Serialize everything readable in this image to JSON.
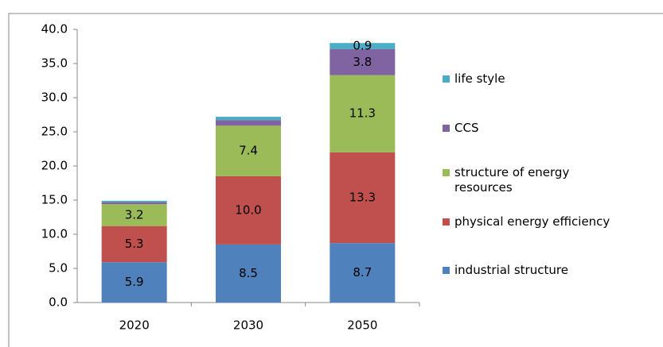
{
  "chart_data": {
    "type": "stacked_bar",
    "categories": [
      "2020",
      "2030",
      "2050"
    ],
    "series": [
      {
        "name": "industrial structure",
        "color": "#4f81bd",
        "values": [
          5.9,
          8.5,
          8.7
        ],
        "value_labels": [
          "5.9",
          "8.5",
          "8.7"
        ]
      },
      {
        "name": "physical energy efficiency",
        "color": "#c0504d",
        "values": [
          5.3,
          10.0,
          13.3
        ],
        "value_labels": [
          "5.3",
          "10.0",
          "13.3"
        ]
      },
      {
        "name": "structure of energy resources",
        "color": "#9bbb59",
        "values": [
          3.2,
          7.4,
          11.3
        ],
        "value_labels": [
          "3.2",
          "7.4",
          "11.3"
        ]
      },
      {
        "name": "CCS",
        "color": "#8064a2",
        "values": [
          0.3,
          0.8,
          3.8
        ],
        "value_labels": [
          null,
          null,
          "3.8"
        ]
      },
      {
        "name": "life style",
        "color": "#4bacc6",
        "values": [
          0.2,
          0.5,
          0.9
        ],
        "value_labels": [
          null,
          null,
          "0.9"
        ]
      }
    ],
    "ylim": [
      0,
      40
    ],
    "yticks": [
      {
        "value": 0,
        "label": "0.0"
      },
      {
        "value": 5,
        "label": "5.0"
      },
      {
        "value": 10,
        "label": "10.0"
      },
      {
        "value": 15,
        "label": "15.0"
      },
      {
        "value": 20,
        "label": "20.0"
      },
      {
        "value": 25,
        "label": "25.0"
      },
      {
        "value": 30,
        "label": "30.0"
      },
      {
        "value": 35,
        "label": "35.0"
      },
      {
        "value": 40,
        "label": "40.0"
      }
    ],
    "grid": false,
    "legend": "right"
  }
}
